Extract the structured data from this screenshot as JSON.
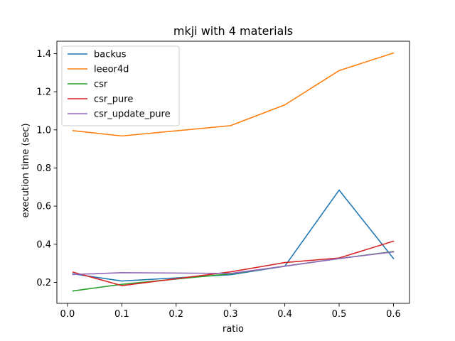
{
  "chart_data": {
    "type": "line",
    "title": "mkji with 4 materials",
    "xlabel": "ratio",
    "ylabel": "execution time (sec)",
    "x": [
      0.01,
      0.1,
      0.3,
      0.4,
      0.5,
      0.6
    ],
    "xlim": [
      -0.0195,
      0.6295
    ],
    "ylim": [
      0.09,
      1.465
    ],
    "xticks": [
      0.0,
      0.1,
      0.2,
      0.3,
      0.4,
      0.5,
      0.6
    ],
    "xtick_labels": [
      "0.0",
      "0.1",
      "0.2",
      "0.3",
      "0.4",
      "0.5",
      "0.6"
    ],
    "yticks": [
      0.2,
      0.4,
      0.6,
      0.8,
      1.0,
      1.2,
      1.4
    ],
    "ytick_labels": [
      "0.2",
      "0.4",
      "0.6",
      "0.8",
      "1.0",
      "1.2",
      "1.4"
    ],
    "grid": false,
    "legend_position": "top-left",
    "series": [
      {
        "name": "backus",
        "color": "#1f77b4",
        "values": [
          0.245,
          0.207,
          0.24,
          0.285,
          0.684,
          0.325
        ]
      },
      {
        "name": "leeor4d",
        "color": "#ff7f0e",
        "values": [
          0.996,
          0.968,
          1.022,
          1.131,
          1.311,
          1.403
        ]
      },
      {
        "name": "csr",
        "color": "#2ca02c",
        "values": [
          0.155,
          0.19,
          0.245,
          0.285,
          0.325,
          0.362
        ]
      },
      {
        "name": "csr_pure",
        "color": "#d62728",
        "values": [
          0.254,
          0.183,
          0.255,
          0.304,
          0.328,
          0.416
        ]
      },
      {
        "name": "csr_update_pure",
        "color": "#9467bd",
        "values": [
          0.241,
          0.251,
          0.247,
          0.285,
          0.325,
          0.36
        ]
      }
    ]
  }
}
